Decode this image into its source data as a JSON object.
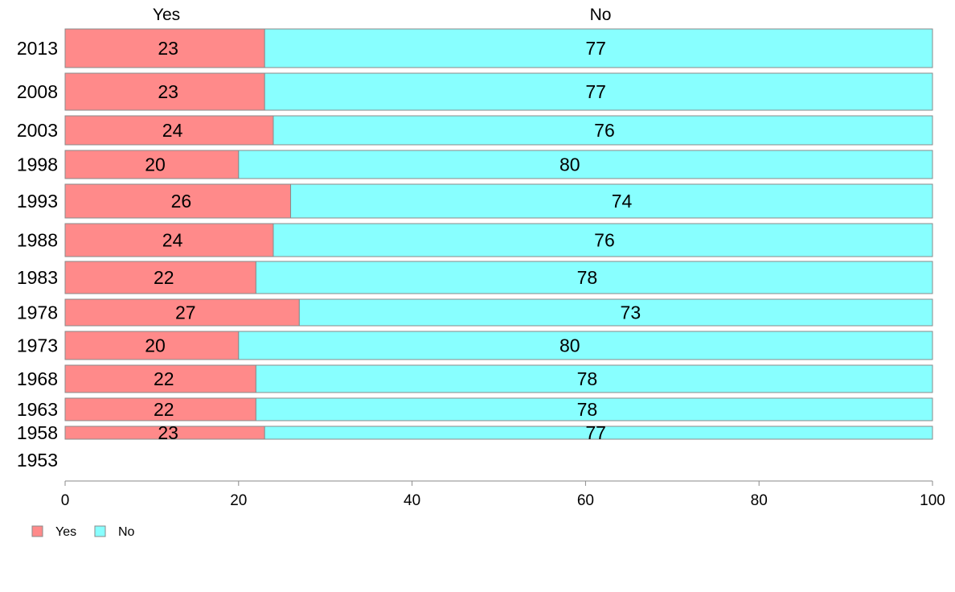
{
  "chart_data": {
    "type": "bar",
    "orientation": "horizontal",
    "stacked": true,
    "categories": [
      "2013",
      "2008",
      "2003",
      "1998",
      "1993",
      "1988",
      "1983",
      "1978",
      "1973",
      "1968",
      "1963",
      "1958",
      "1953"
    ],
    "series": [
      {
        "name": "Yes",
        "color": "#ff8a8a",
        "values": [
          23,
          23,
          24,
          20,
          26,
          24,
          22,
          27,
          20,
          22,
          22,
          23,
          null
        ],
        "labels": [
          "23",
          "23",
          "24",
          "20",
          "26",
          "24",
          "22",
          "27",
          "20",
          "22",
          "22",
          "23",
          ""
        ]
      },
      {
        "name": "No",
        "color": "#88ffff",
        "values": [
          77,
          77,
          76,
          80,
          74,
          76,
          78,
          73,
          80,
          78,
          78,
          77,
          null
        ],
        "labels": [
          "77",
          "77",
          "76",
          "80",
          "74",
          "76",
          "78",
          "73",
          "80",
          "78",
          "78",
          "77",
          ""
        ]
      }
    ],
    "xlim": [
      0,
      100
    ],
    "xticks": [
      "0",
      "20",
      "40",
      "60",
      "80",
      "100"
    ],
    "grid": false,
    "legend": {
      "position": "bottom-left",
      "items": [
        "Yes",
        "No"
      ]
    },
    "series_headers": [
      "Yes",
      "No"
    ]
  }
}
